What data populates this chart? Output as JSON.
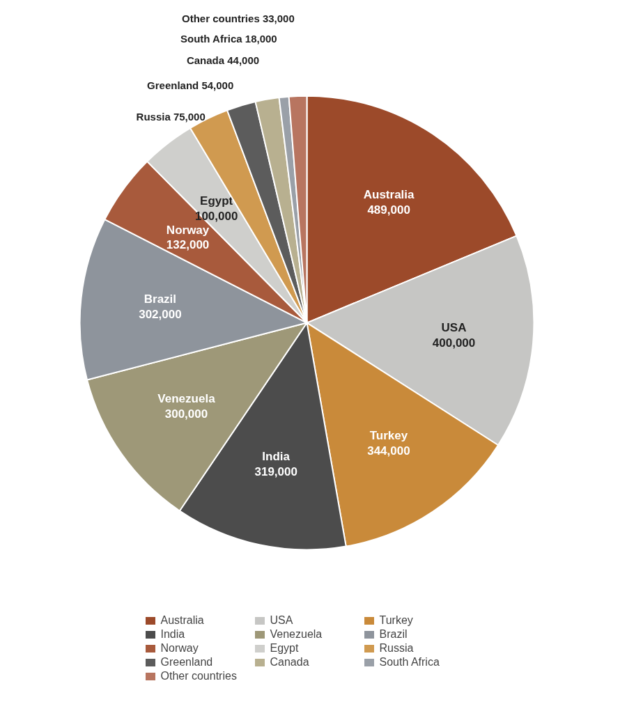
{
  "chart_data": {
    "type": "pie",
    "categories": [
      "Australia",
      "USA",
      "Turkey",
      "India",
      "Venezuela",
      "Brazil",
      "Norway",
      "Egypt",
      "Russia",
      "Greenland",
      "Canada",
      "South Africa",
      "Other countries"
    ],
    "values": [
      489000,
      400000,
      344000,
      319000,
      300000,
      302000,
      132000,
      100000,
      75000,
      54000,
      44000,
      18000,
      33000
    ],
    "colors": [
      "#9c4a2a",
      "#c6c6c4",
      "#c98a3a",
      "#4c4c4c",
      "#9e9878",
      "#8e949c",
      "#a85a3c",
      "#cfcfcc",
      "#d09a50",
      "#5c5c5c",
      "#b8b090",
      "#9aa0a8",
      "#b87560"
    ],
    "value_labels": [
      "489,000",
      "400,000",
      "344,000",
      "319,000",
      "300,000",
      "302,000",
      "132,000",
      "100,000",
      "75,000",
      "54,000",
      "44,000",
      "18,000",
      "33,000"
    ],
    "legend": "bottom"
  }
}
